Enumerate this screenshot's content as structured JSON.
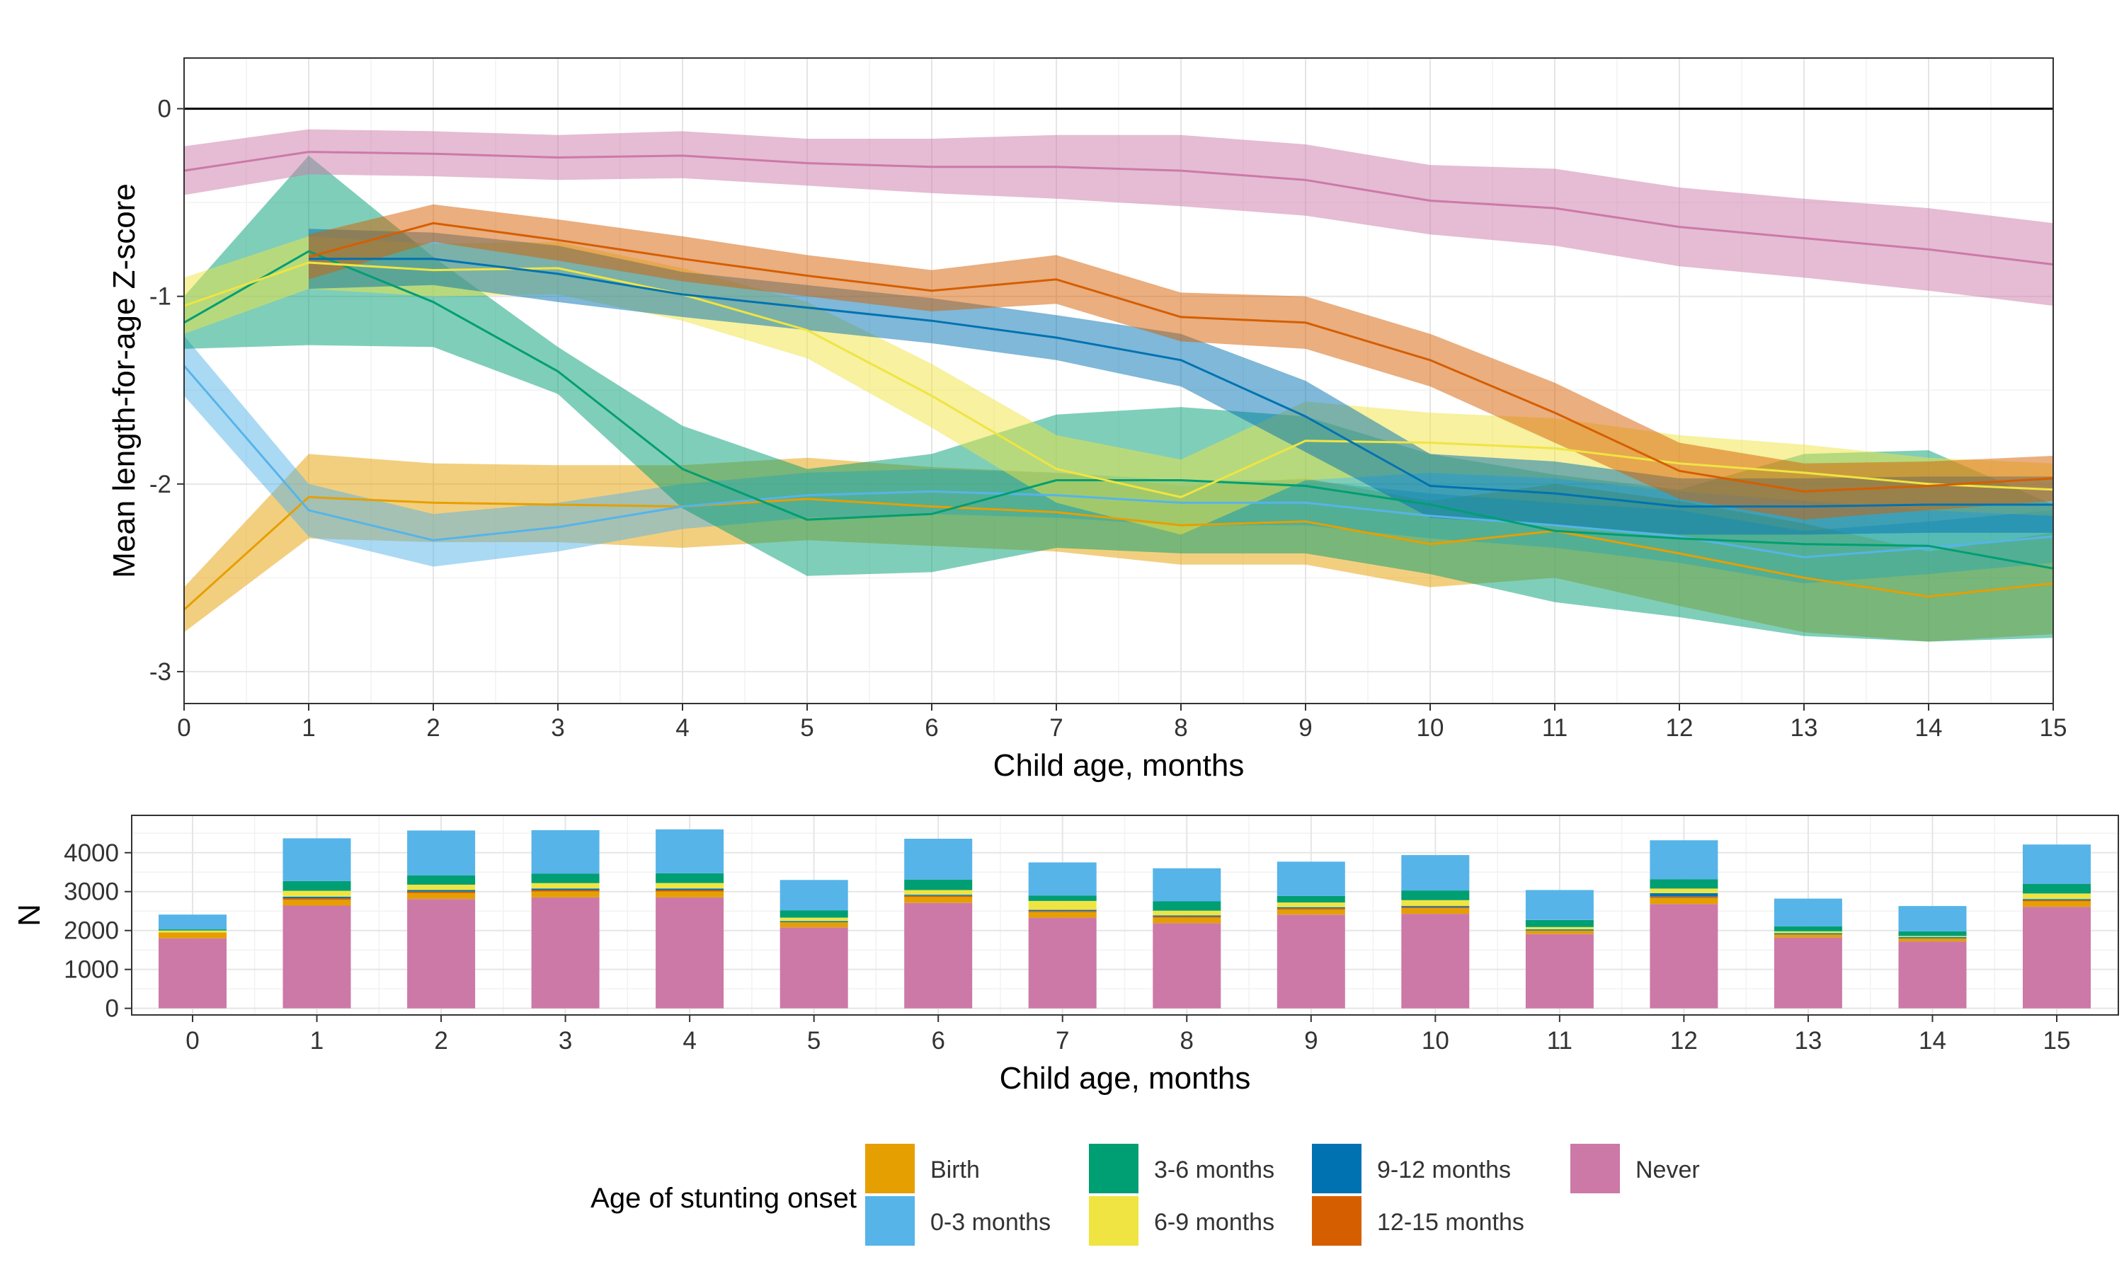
{
  "chart_data": [
    {
      "type": "line",
      "title": "",
      "xlabel": "Child age, months",
      "ylabel": "Mean length-for-age Z-score",
      "xlim": [
        0,
        15
      ],
      "ylim": [
        -3.17,
        0.27
      ],
      "x": [
        0,
        1,
        2,
        3,
        4,
        5,
        6,
        7,
        8,
        9,
        10,
        11,
        12,
        13,
        14,
        15
      ],
      "x_ticks": [
        "0",
        "1",
        "2",
        "3",
        "4",
        "5",
        "6",
        "7",
        "8",
        "9",
        "10",
        "11",
        "12",
        "13",
        "14",
        "15"
      ],
      "y_ticks": [
        {
          "value": 0,
          "label": "0"
        },
        {
          "value": -1,
          "label": "-1"
        },
        {
          "value": -2,
          "label": "-2"
        },
        {
          "value": -3,
          "label": "-3"
        }
      ],
      "reference_line": 0,
      "grid": true,
      "ribbons": "95% confidence band around each mean",
      "series": [
        {
          "name": "Birth",
          "color": "#E69F00",
          "fill": "#E69F00",
          "x": [
            0,
            1,
            2,
            3,
            4,
            5,
            6,
            7,
            8,
            9,
            10,
            11,
            12,
            13,
            14,
            15
          ],
          "values": [
            -2.67,
            -2.07,
            -2.1,
            -2.11,
            -2.12,
            -2.08,
            -2.12,
            -2.15,
            -2.22,
            -2.2,
            -2.32,
            -2.25,
            -2.37,
            -2.5,
            -2.6,
            -2.53
          ],
          "lower": [
            -2.79,
            -2.29,
            -2.31,
            -2.31,
            -2.34,
            -2.3,
            -2.33,
            -2.36,
            -2.43,
            -2.43,
            -2.55,
            -2.5,
            -2.65,
            -2.79,
            -2.84,
            -2.8
          ],
          "upper": [
            -2.55,
            -1.84,
            -1.89,
            -1.9,
            -1.9,
            -1.86,
            -1.91,
            -1.94,
            -2.01,
            -1.97,
            -2.09,
            -2.0,
            -2.09,
            -2.21,
            -2.36,
            -2.26
          ]
        },
        {
          "name": "0-3 months",
          "color": "#56B4E9",
          "fill": "#56B4E9",
          "x": [
            0,
            1,
            2,
            3,
            4,
            5,
            6,
            7,
            8,
            9,
            10,
            11,
            12,
            13,
            14,
            15
          ],
          "values": [
            -1.37,
            -2.14,
            -2.3,
            -2.23,
            -2.12,
            -2.06,
            -2.04,
            -2.06,
            -2.1,
            -2.1,
            -2.17,
            -2.22,
            -2.28,
            -2.39,
            -2.34,
            -2.28
          ],
          "lower": [
            -1.53,
            -2.28,
            -2.44,
            -2.36,
            -2.24,
            -2.18,
            -2.16,
            -2.18,
            -2.22,
            -2.22,
            -2.29,
            -2.34,
            -2.42,
            -2.53,
            -2.48,
            -2.42
          ],
          "upper": [
            -1.21,
            -2.0,
            -2.16,
            -2.1,
            -2.0,
            -1.94,
            -1.92,
            -1.94,
            -1.98,
            -1.98,
            -2.05,
            -2.1,
            -2.14,
            -2.25,
            -2.2,
            -2.14
          ]
        },
        {
          "name": "3-6 months",
          "color": "#009E73",
          "fill": "#009E73",
          "x": [
            0,
            1,
            2,
            3,
            4,
            5,
            6,
            7,
            8,
            9,
            10,
            11,
            12,
            13,
            14,
            15
          ],
          "values": [
            -1.14,
            -0.76,
            -1.03,
            -1.4,
            -1.92,
            -2.19,
            -2.16,
            -1.98,
            -1.98,
            -2.01,
            -2.11,
            -2.25,
            -2.29,
            -2.32,
            -2.33,
            -2.45
          ],
          "lower": [
            -1.28,
            -1.26,
            -1.27,
            -1.52,
            -2.13,
            -2.49,
            -2.47,
            -2.34,
            -2.37,
            -2.37,
            -2.48,
            -2.63,
            -2.71,
            -2.81,
            -2.84,
            -2.82
          ],
          "upper": [
            -1.0,
            -0.25,
            -0.79,
            -1.27,
            -1.69,
            -1.92,
            -1.84,
            -1.63,
            -1.59,
            -1.64,
            -1.84,
            -1.95,
            -2.03,
            -1.84,
            -1.82,
            -2.11
          ]
        },
        {
          "name": "6-9 months",
          "color": "#F0E442",
          "fill": "#F0E442",
          "x": [
            0,
            1,
            2,
            3,
            4,
            5,
            6,
            7,
            8,
            9,
            10,
            11,
            12,
            13,
            14,
            15
          ],
          "values": [
            -1.05,
            -0.82,
            -0.86,
            -0.85,
            -0.99,
            -1.18,
            -1.53,
            -1.92,
            -2.07,
            -1.77,
            -1.78,
            -1.81,
            -1.89,
            -1.94,
            -2.0,
            -2.03
          ],
          "lower": [
            -1.2,
            -0.96,
            -1.0,
            -0.99,
            -1.13,
            -1.33,
            -1.7,
            -2.1,
            -2.27,
            -1.98,
            -1.94,
            -1.97,
            -2.04,
            -2.09,
            -2.14,
            -2.17
          ],
          "upper": [
            -0.9,
            -0.68,
            -0.72,
            -0.71,
            -0.85,
            -1.03,
            -1.36,
            -1.74,
            -1.87,
            -1.56,
            -1.62,
            -1.65,
            -1.74,
            -1.79,
            -1.86,
            -1.89
          ]
        },
        {
          "name": "9-12 months",
          "color": "#0072B2",
          "fill": "#0072B2",
          "x": [
            1,
            2,
            3,
            4,
            5,
            6,
            7,
            8,
            9,
            10,
            11,
            12,
            13,
            14,
            15
          ],
          "values": [
            -0.8,
            -0.8,
            -0.88,
            -0.99,
            -1.06,
            -1.13,
            -1.22,
            -1.34,
            -1.64,
            -2.01,
            -2.05,
            -2.12,
            -2.12,
            -2.11,
            -2.11
          ],
          "lower": [
            -0.96,
            -0.94,
            -1.03,
            -1.11,
            -1.18,
            -1.25,
            -1.34,
            -1.48,
            -1.83,
            -2.18,
            -2.22,
            -2.27,
            -2.27,
            -2.26,
            -2.26
          ],
          "upper": [
            -0.64,
            -0.66,
            -0.73,
            -0.87,
            -0.94,
            -1.01,
            -1.1,
            -1.2,
            -1.45,
            -1.84,
            -1.88,
            -1.97,
            -1.97,
            -1.96,
            -1.96
          ]
        },
        {
          "name": "12-15 months",
          "color": "#D55E00",
          "fill": "#D55E00",
          "x": [
            1,
            2,
            3,
            4,
            5,
            6,
            7,
            8,
            9,
            10,
            11,
            12,
            13,
            14,
            15
          ],
          "values": [
            -0.79,
            -0.61,
            -0.7,
            -0.8,
            -0.89,
            -0.97,
            -0.91,
            -1.11,
            -1.14,
            -1.34,
            -1.62,
            -1.93,
            -2.04,
            -2.01,
            -1.97
          ],
          "lower": [
            -0.91,
            -0.71,
            -0.81,
            -0.92,
            -1.0,
            -1.08,
            -1.04,
            -1.24,
            -1.28,
            -1.48,
            -1.78,
            -2.08,
            -2.19,
            -2.14,
            -2.09
          ],
          "upper": [
            -0.67,
            -0.51,
            -0.59,
            -0.68,
            -0.78,
            -0.86,
            -0.78,
            -0.98,
            -1.0,
            -1.2,
            -1.46,
            -1.78,
            -1.89,
            -1.88,
            -1.85
          ]
        },
        {
          "name": "Never",
          "color": "#CC79A7",
          "fill": "#CC79A7",
          "x": [
            0,
            1,
            2,
            3,
            4,
            5,
            6,
            7,
            8,
            9,
            10,
            11,
            12,
            13,
            14,
            15
          ],
          "values": [
            -0.33,
            -0.23,
            -0.24,
            -0.26,
            -0.25,
            -0.29,
            -0.31,
            -0.31,
            -0.33,
            -0.38,
            -0.49,
            -0.53,
            -0.63,
            -0.69,
            -0.75,
            -0.83
          ],
          "lower": [
            -0.46,
            -0.35,
            -0.36,
            -0.38,
            -0.37,
            -0.41,
            -0.45,
            -0.48,
            -0.52,
            -0.57,
            -0.67,
            -0.73,
            -0.84,
            -0.9,
            -0.97,
            -1.05
          ],
          "upper": [
            -0.2,
            -0.11,
            -0.12,
            -0.14,
            -0.12,
            -0.16,
            -0.16,
            -0.14,
            -0.14,
            -0.19,
            -0.3,
            -0.32,
            -0.42,
            -0.48,
            -0.53,
            -0.61
          ]
        }
      ]
    },
    {
      "type": "bar",
      "stacked": true,
      "title": "",
      "xlabel": "Child age, months",
      "ylabel": "N",
      "ylim": [
        -170,
        4960
      ],
      "categories": [
        "0",
        "1",
        "2",
        "3",
        "4",
        "5",
        "6",
        "7",
        "8",
        "9",
        "10",
        "11",
        "12",
        "13",
        "14",
        "15"
      ],
      "y_ticks": [
        {
          "value": 0,
          "label": "0"
        },
        {
          "value": 1000,
          "label": "1000"
        },
        {
          "value": 2000,
          "label": "2000"
        },
        {
          "value": 3000,
          "label": "3000"
        },
        {
          "value": 4000,
          "label": "4000"
        }
      ],
      "grid": true,
      "series": [
        {
          "name": "Never",
          "color": "#CC79A7",
          "values": [
            1800,
            2640,
            2810,
            2850,
            2850,
            2080,
            2710,
            2330,
            2190,
            2410,
            2430,
            1910,
            2680,
            1820,
            1720,
            2610
          ]
        },
        {
          "name": "12-15 months",
          "color": "#D55E00",
          "values": [
            0,
            40,
            40,
            40,
            40,
            0,
            30,
            30,
            30,
            30,
            30,
            0,
            30,
            0,
            0,
            30
          ]
        },
        {
          "name": "9-12 months",
          "color": "#0072B2",
          "values": [
            0,
            40,
            40,
            40,
            40,
            30,
            30,
            30,
            30,
            30,
            30,
            30,
            90,
            30,
            30,
            30
          ]
        },
        {
          "name": "6-9 months",
          "color": "#F0E442",
          "values": [
            50,
            150,
            140,
            140,
            140,
            90,
            120,
            230,
            120,
            120,
            150,
            60,
            120,
            50,
            30,
            140
          ]
        },
        {
          "name": "3-6 months",
          "color": "#009E73",
          "values": [
            30,
            250,
            240,
            240,
            250,
            190,
            270,
            140,
            240,
            170,
            250,
            180,
            240,
            130,
            120,
            250
          ]
        },
        {
          "name": "0-3 months",
          "color": "#56B4E9",
          "values": [
            380,
            1100,
            1150,
            1120,
            1130,
            780,
            1050,
            850,
            850,
            880,
            910,
            770,
            1000,
            710,
            650,
            1010
          ]
        },
        {
          "name": "Birth",
          "color": "#E69F00",
          "values": [
            150,
            150,
            150,
            150,
            150,
            130,
            150,
            140,
            140,
            130,
            140,
            90,
            160,
            80,
            80,
            140
          ]
        }
      ],
      "stack_order_bottom_to_top": [
        "Never",
        "Birth",
        "12-15 months",
        "9-12 months",
        "6-9 months",
        "3-6 months",
        "0-3 months"
      ]
    }
  ],
  "legend": {
    "title": "Age of stunting onset",
    "position": "bottom",
    "items": [
      {
        "label": "Birth",
        "color": "#E69F00"
      },
      {
        "label": "0-3 months",
        "color": "#56B4E9"
      },
      {
        "label": "3-6 months",
        "color": "#009E73"
      },
      {
        "label": "6-9 months",
        "color": "#F0E442"
      },
      {
        "label": "9-12 months",
        "color": "#0072B2"
      },
      {
        "label": "12-15 months",
        "color": "#D55E00"
      },
      {
        "label": "Never",
        "color": "#CC79A7"
      }
    ]
  }
}
